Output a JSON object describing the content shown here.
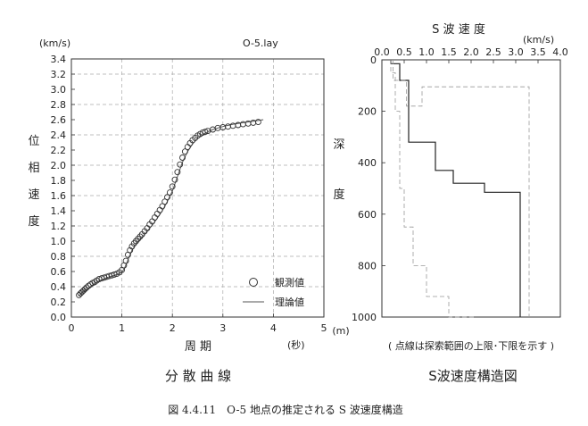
{
  "chart_data": [
    {
      "type": "scatter",
      "title": "",
      "annotation": "O-5.lay",
      "unit_label": "(km/s)",
      "xlabel": "周 期",
      "xunit": "(秒)",
      "ylabel": [
        "位",
        "相",
        "速",
        "度"
      ],
      "xlim": [
        0,
        5
      ],
      "ylim": [
        0,
        3.4
      ],
      "xticks": [
        "0",
        "1",
        "2",
        "3",
        "4",
        "5"
      ],
      "yticks": [
        "0.0",
        "0.2",
        "0.4",
        "0.6",
        "0.8",
        "1.0",
        "1.2",
        "1.4",
        "1.6",
        "1.8",
        "2.0",
        "2.2",
        "2.4",
        "2.6",
        "2.8",
        "3.0",
        "3.2",
        "3.4"
      ],
      "grid": true,
      "legend_position": "bottom-right",
      "series": [
        {
          "name": "観測値",
          "style": "open-circle",
          "x": [
            0.15,
            0.18,
            0.21,
            0.24,
            0.27,
            0.3,
            0.34,
            0.38,
            0.42,
            0.46,
            0.5,
            0.55,
            0.6,
            0.65,
            0.7,
            0.75,
            0.8,
            0.85,
            0.9,
            0.95,
            1.0,
            1.04,
            1.08,
            1.12,
            1.16,
            1.2,
            1.24,
            1.28,
            1.32,
            1.36,
            1.4,
            1.45,
            1.5,
            1.55,
            1.6,
            1.65,
            1.7,
            1.75,
            1.8,
            1.85,
            1.9,
            1.95,
            2.0,
            2.05,
            2.1,
            2.15,
            2.2,
            2.25,
            2.3,
            2.35,
            2.4,
            2.45,
            2.5,
            2.55,
            2.6,
            2.65,
            2.7,
            2.8,
            2.9,
            3.0,
            3.1,
            3.2,
            3.3,
            3.4,
            3.5,
            3.6,
            3.7
          ],
          "y": [
            0.29,
            0.31,
            0.33,
            0.35,
            0.37,
            0.39,
            0.41,
            0.43,
            0.45,
            0.46,
            0.48,
            0.5,
            0.51,
            0.52,
            0.53,
            0.54,
            0.55,
            0.56,
            0.57,
            0.59,
            0.62,
            0.68,
            0.74,
            0.82,
            0.88,
            0.93,
            0.97,
            1.0,
            1.03,
            1.06,
            1.09,
            1.13,
            1.17,
            1.22,
            1.26,
            1.31,
            1.36,
            1.41,
            1.46,
            1.52,
            1.58,
            1.64,
            1.72,
            1.81,
            1.91,
            2.01,
            2.1,
            2.18,
            2.24,
            2.29,
            2.33,
            2.36,
            2.39,
            2.41,
            2.43,
            2.44,
            2.45,
            2.47,
            2.49,
            2.5,
            2.51,
            2.52,
            2.53,
            2.54,
            2.55,
            2.56,
            2.57
          ]
        },
        {
          "name": "理論値",
          "style": "line",
          "x": [
            0.15,
            0.2,
            0.3,
            0.4,
            0.5,
            0.6,
            0.7,
            0.8,
            0.9,
            1.0,
            1.05,
            1.1,
            1.15,
            1.2,
            1.25,
            1.3,
            1.4,
            1.5,
            1.6,
            1.7,
            1.8,
            1.9,
            2.0,
            2.1,
            2.2,
            2.3,
            2.4,
            2.5,
            2.6,
            2.7,
            2.8,
            3.0,
            3.2,
            3.4,
            3.6,
            3.8
          ],
          "y": [
            0.28,
            0.31,
            0.36,
            0.41,
            0.46,
            0.49,
            0.52,
            0.54,
            0.56,
            0.59,
            0.64,
            0.72,
            0.8,
            0.88,
            0.93,
            0.98,
            1.05,
            1.13,
            1.21,
            1.3,
            1.4,
            1.52,
            1.66,
            1.85,
            2.04,
            2.18,
            2.28,
            2.35,
            2.4,
            2.44,
            2.47,
            2.51,
            2.54,
            2.56,
            2.58,
            2.6
          ]
        }
      ],
      "caption": "分 散 曲 線"
    },
    {
      "type": "line",
      "title": "S 波 速 度",
      "unit_label": "(km/s)",
      "ylabel": [
        "深",
        "度"
      ],
      "yunit": "(m)",
      "xlim": [
        0,
        4.0
      ],
      "ylim": [
        0,
        1000
      ],
      "y_inverted": true,
      "x_axis_position": "top",
      "xticks": [
        "0.0",
        "0.5",
        "1.0",
        "1.5",
        "2.0",
        "2.5",
        "3.0",
        "3.5",
        "4.0"
      ],
      "yticks": [
        "0",
        "200",
        "400",
        "600",
        "800",
        "1000"
      ],
      "series": [
        {
          "style": "solid",
          "x": [
            0.2,
            0.2,
            0.4,
            0.4,
            0.6,
            0.6,
            1.2,
            1.2,
            1.6,
            1.6,
            2.3,
            2.3,
            3.1,
            3.1
          ],
          "y": [
            0,
            15,
            15,
            80,
            80,
            320,
            320,
            430,
            430,
            480,
            480,
            515,
            515,
            1000
          ]
        },
        {
          "style": "dashed",
          "x": [
            0.25,
            0.25,
            0.55,
            0.55,
            0.9,
            0.9,
            3.3,
            3.3
          ],
          "y": [
            0,
            80,
            80,
            180,
            180,
            105,
            105,
            1000
          ]
        },
        {
          "style": "dashed",
          "x": [
            0.2,
            0.2,
            0.3,
            0.3,
            0.4,
            0.4,
            0.5,
            0.5,
            0.7,
            0.7,
            1.0,
            1.0,
            1.5,
            1.5,
            2.1,
            2.1
          ],
          "y": [
            0,
            50,
            50,
            200,
            200,
            500,
            500,
            650,
            650,
            800,
            800,
            920,
            920,
            1000,
            1000,
            1000
          ]
        }
      ],
      "note": "( 点線は探索範囲の上限･下限を示す )",
      "caption": "S波速度構造図"
    }
  ],
  "figure_caption": "図 4.4.11　O-5 地点の推定される S 波速度構造"
}
